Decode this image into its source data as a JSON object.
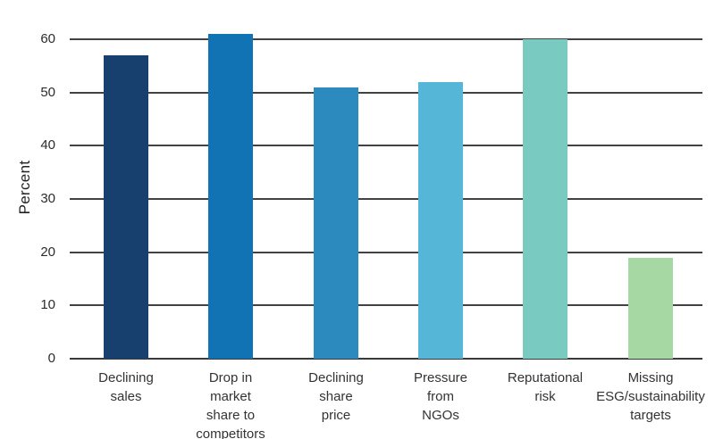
{
  "chart_data": {
    "type": "bar",
    "title": "",
    "xlabel": "",
    "ylabel": "Percent",
    "ylim": [
      0,
      60
    ],
    "yticks": [
      0,
      10,
      20,
      30,
      40,
      50,
      60
    ],
    "grid": true,
    "legend_position": "none",
    "categories": [
      "Declining sales",
      "Drop in market share to competitors",
      "Declining share price",
      "Pressure from NGOs",
      "Reputational risk",
      "Missing ESG/sustainability targets"
    ],
    "category_label_lines": [
      [
        "Declining",
        "sales"
      ],
      [
        "Drop in",
        "market",
        "share to",
        "competitors"
      ],
      [
        "Declining",
        "share",
        "price"
      ],
      [
        "Pressure",
        "from",
        "NGOs"
      ],
      [
        "Reputational",
        "risk"
      ],
      [
        "Missing",
        "ESG/sustainability",
        "targets"
      ]
    ],
    "values": [
      57,
      61,
      51,
      52,
      60,
      19
    ],
    "bar_colors": [
      "#17406E",
      "#1172B4",
      "#2D8ABF",
      "#55B6D8",
      "#79CBC2",
      "#A6D8A3"
    ],
    "gridline_color": "#424242",
    "axis_line_color": "#3A3A3A",
    "text_color": "#333333",
    "background_color": "#FFFFFF"
  }
}
